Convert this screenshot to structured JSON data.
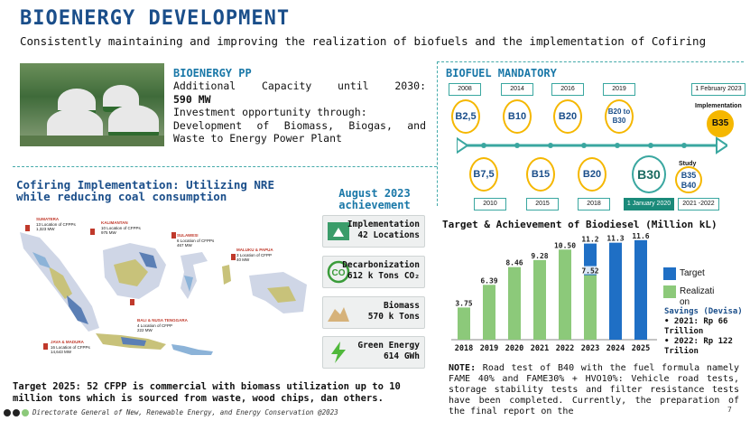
{
  "header": {
    "title": "BIOENERGY DEVELOPMENT",
    "subtitle": "Consistently maintaining and improving the realization of biofuels and the implementation of Cofiring"
  },
  "bioenergy_pp": {
    "heading": "BIOENERGY PP",
    "line1": "Additional Capacity until 2030:",
    "line2": "590 MW",
    "line3": "Investment opportunity through:",
    "line4": "Development of Biomass, Biogas, and",
    "line5": "Waste to Energy Power Plant"
  },
  "cofiring": {
    "heading": "Cofiring Implementation: Utilizing NRE while reducing coal consumption",
    "regions": [
      {
        "name": "SUMATERA",
        "l1": "13 Location of CFPPs",
        "l2": "1,323 MW"
      },
      {
        "name": "KALIMANTAN",
        "l1": "10 Location of CFPPs",
        "l2": "975 MW"
      },
      {
        "name": "SULAWESI",
        "l1": "6 Location of CFPPs",
        "l2": "467 MW"
      },
      {
        "name": "MALUKU & PAPUA",
        "l1": "3 Location of CFPP",
        "l2": "40 MW"
      },
      {
        "name": "BALI & NUSA TENGGARA",
        "l1": "4 Location of CFPP",
        "l2": "222 MW"
      },
      {
        "name": "JAVA & MADURA",
        "l1": "16 Location of CFPPs",
        "l2": "14,643 MW"
      }
    ],
    "target_text": "Target 2025: 52 CFPP is commercial with biomass utilization up to 10 million tons which is sourced from waste, wood chips, dan others."
  },
  "achievement": {
    "heading": "August 2023 achievement",
    "cards": [
      {
        "t1": "Implementation",
        "t2": "42 Locations",
        "icon": "implementation-icon"
      },
      {
        "t1": "Decarbonization",
        "t2": "612 k Tons CO₂",
        "icon": "co2-neutral-icon"
      },
      {
        "t1": "Biomass",
        "t2": "570 k Tons",
        "icon": "biomass-pile-icon"
      },
      {
        "t1": "Green Energy",
        "t2": "614 GWh",
        "icon": "lightning-icon"
      }
    ]
  },
  "biofuel": {
    "heading": "BIOFUEL MANDATORY",
    "top": [
      {
        "year": "2008",
        "label": "B2,5"
      },
      {
        "year": "2014",
        "label": "B10"
      },
      {
        "year": "2016",
        "label": "B20"
      },
      {
        "year": "2019",
        "label": "B20 to B30"
      },
      {
        "year": "1 February 2023",
        "label": "B35",
        "note": "Implementation"
      }
    ],
    "bottom": [
      {
        "year": "2010",
        "label": "B7,5"
      },
      {
        "year": "2015",
        "label": "B15"
      },
      {
        "year": "2018",
        "label": "B20"
      },
      {
        "year": "1 January 2020",
        "label": "B30"
      },
      {
        "year": "2021 -2022",
        "label": "B35 B40",
        "note": "Study"
      }
    ]
  },
  "chart_data": {
    "type": "bar",
    "title": "Target & Achievement of Biodiesel (Million kL)",
    "categories": [
      "2018",
      "2019",
      "2020",
      "2021",
      "2022",
      "2023",
      "2024",
      "2025"
    ],
    "series": [
      {
        "name": "Target",
        "color": "#1f6fc5",
        "values": [
          null,
          null,
          null,
          null,
          null,
          11.2,
          11.3,
          11.6
        ],
        "labels": [
          "",
          "",
          "",
          "",
          "",
          "11.2",
          "11.3",
          "11.6"
        ]
      },
      {
        "name": "Realization",
        "color": "#8cc97a",
        "values": [
          3.75,
          6.39,
          8.46,
          9.28,
          10.5,
          7.52,
          null,
          null
        ],
        "labels": [
          "3.75",
          "6.39",
          "8.46",
          "9.28",
          "10.50",
          "7.52",
          "",
          ""
        ]
      }
    ],
    "legend_labels": [
      "Target",
      "Realizati on"
    ],
    "ylim": [
      0,
      12
    ]
  },
  "savings": {
    "heading": "Savings (Devisa)",
    "items": [
      "2021: Rp 66 Trillion",
      "2022: Rp 122 Trilion"
    ]
  },
  "note": {
    "label": "NOTE:",
    "text": "Road test of B40 with the fuel formula namely FAME 40% and FAME30% + HVO10%: Vehicle road tests, storage stability tests and filter resistance tests have been completed. Currently, the preparation of the final report on the"
  },
  "footer": {
    "text": "Directorate General of New, Renewable Energy, and Energy Conservation @2023",
    "page": "7"
  }
}
